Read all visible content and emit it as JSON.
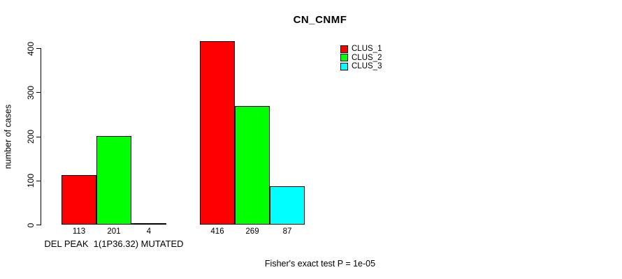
{
  "chart_data": {
    "type": "bar",
    "title": "CN_CNMF",
    "xlabel": "DEL PEAK  1(1P36.32) MUTATED",
    "ylabel": "number of cases",
    "ylim": [
      0,
      400
    ],
    "yticks": [
      0,
      100,
      200,
      300,
      400
    ],
    "grid": false,
    "legend_position": "top-right",
    "categories": [
      "DEL PEAK  1(1P36.32) MUTATED",
      ""
    ],
    "series": [
      {
        "name": "CLUS_1",
        "color": "#ff0000",
        "values": [
          113,
          416
        ]
      },
      {
        "name": "CLUS_2",
        "color": "#00ff00",
        "values": [
          201,
          269
        ]
      },
      {
        "name": "CLUS_3",
        "color": "#00ffff",
        "values": [
          4,
          87
        ]
      }
    ],
    "show_bar_value_labels": true,
    "annotation": "Fisher's exact test P = 1e-05"
  },
  "colors": {
    "background": "#ffffff",
    "axis": "#000000",
    "text": "#000000"
  }
}
